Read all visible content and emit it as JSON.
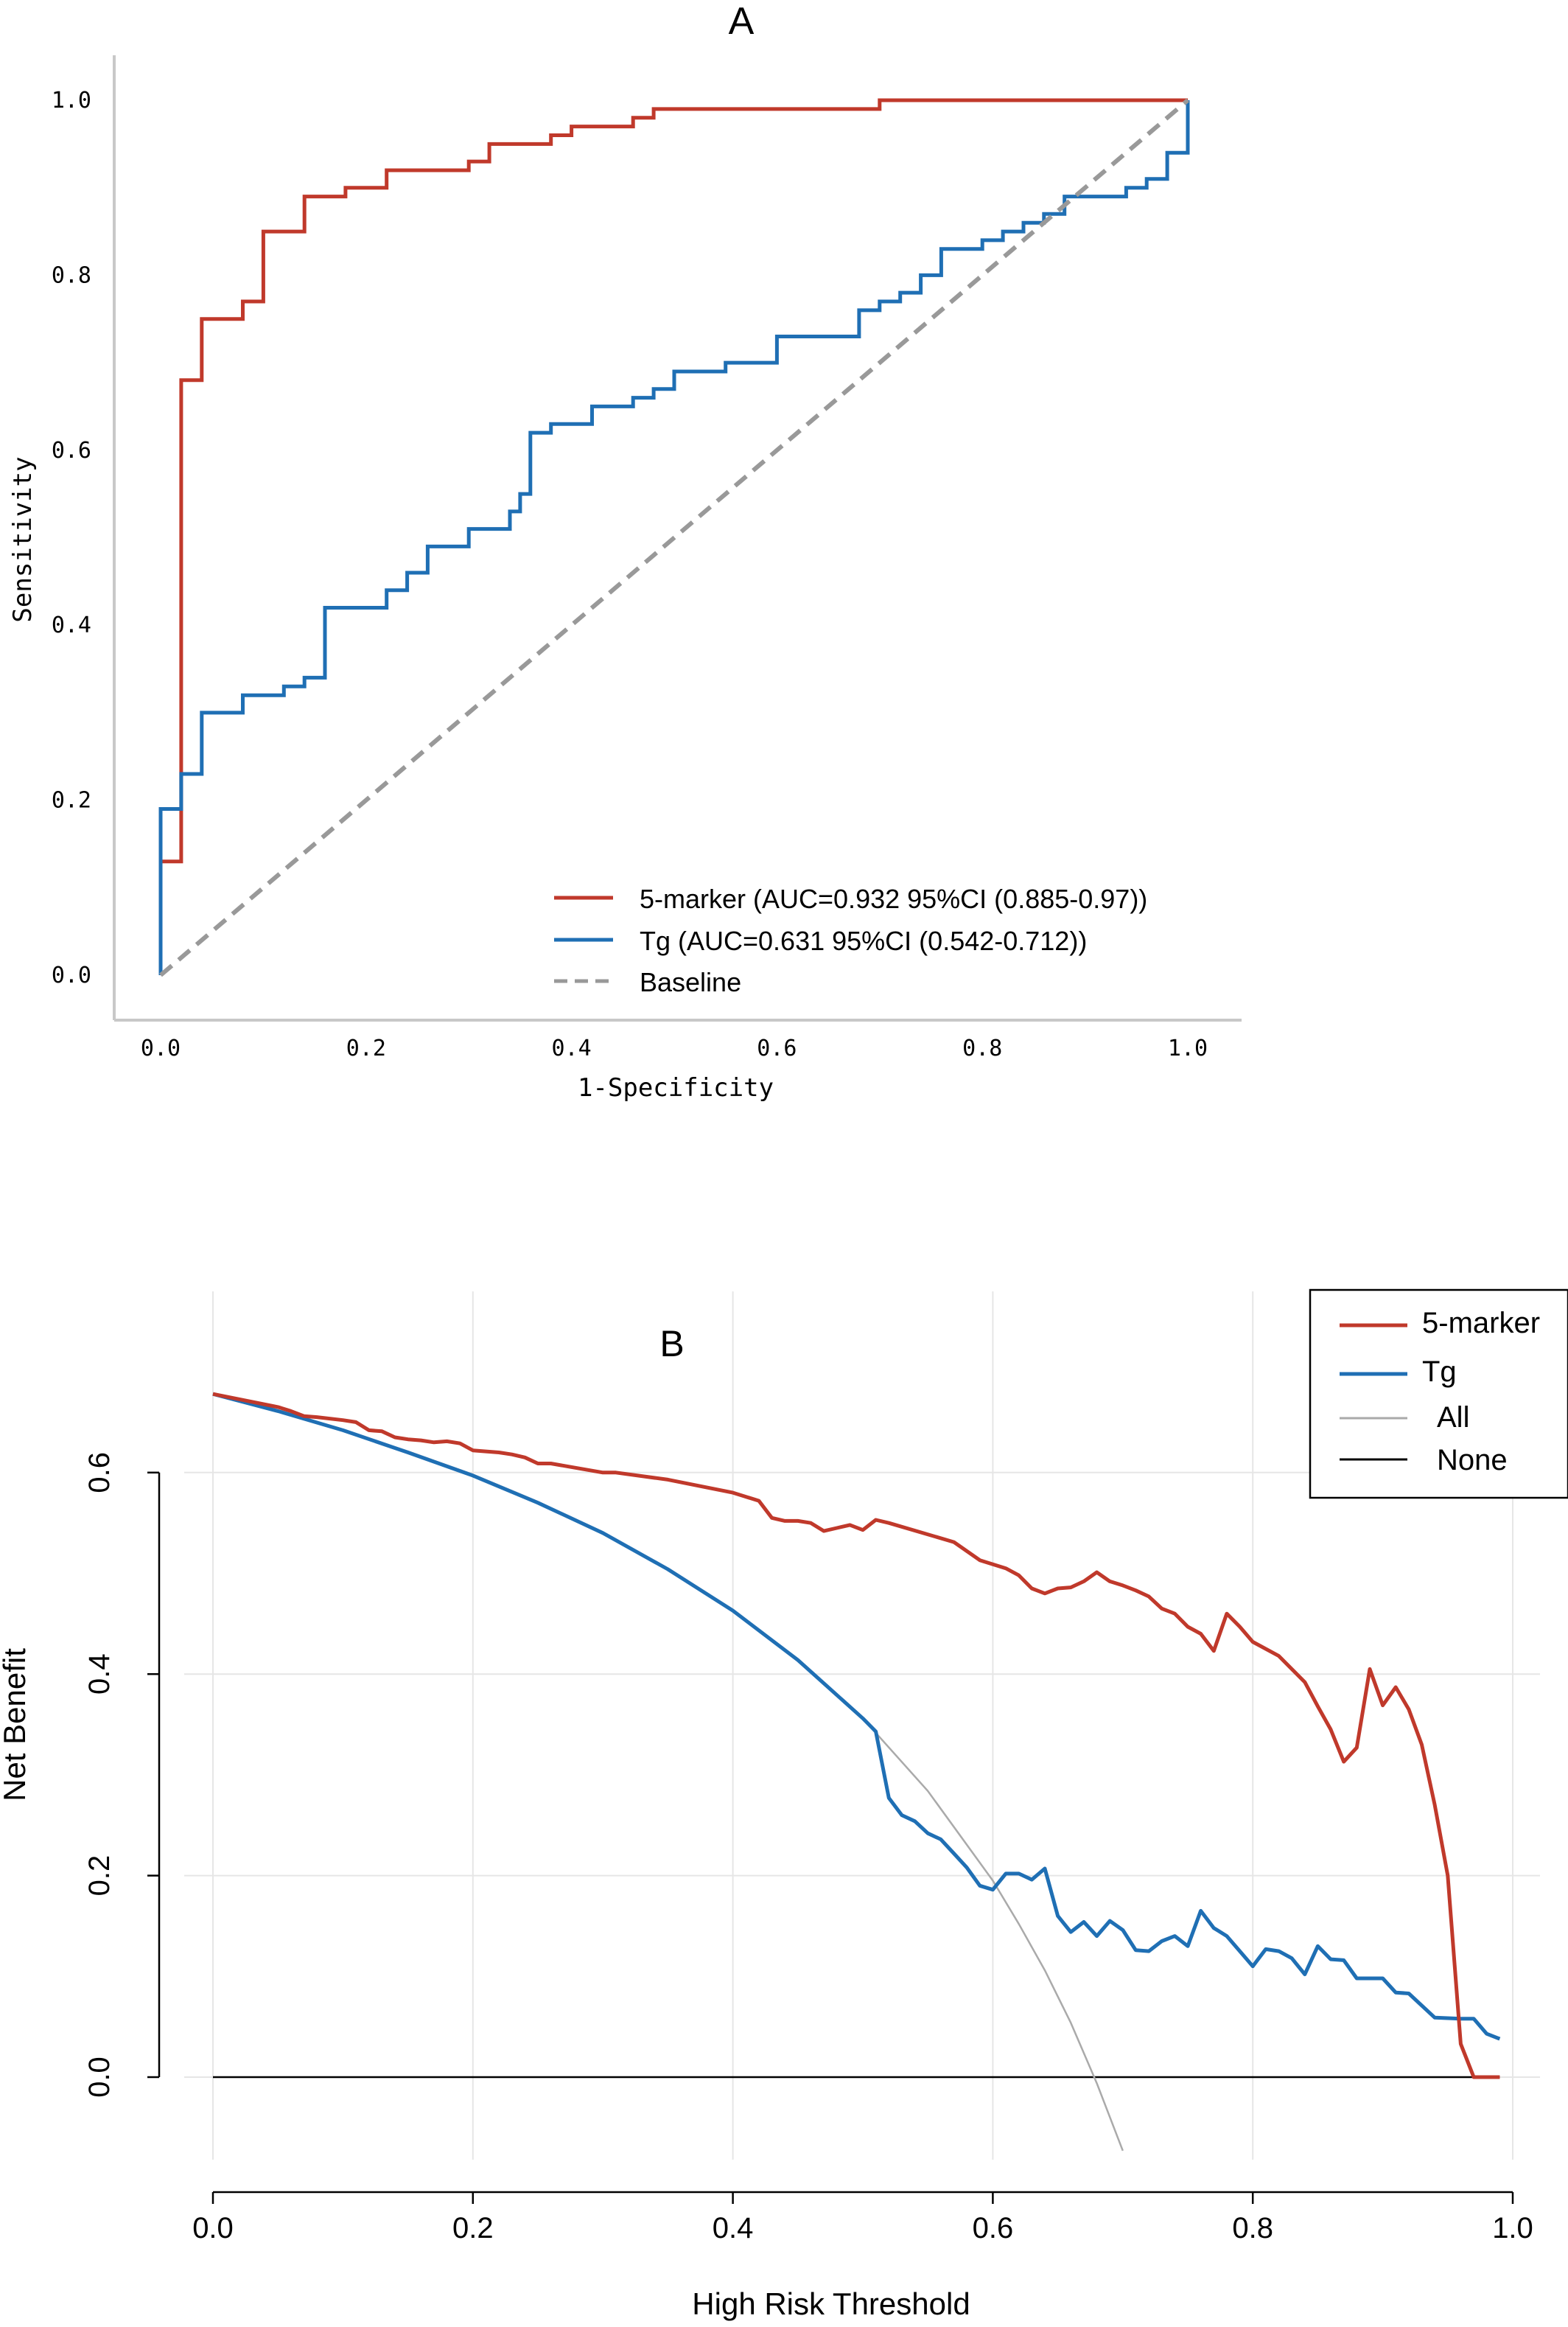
{
  "chart_data": [
    {
      "type": "line",
      "title": "A",
      "xlabel": "1-Specificity",
      "ylabel": "Sensitivity",
      "xlim": [
        0,
        1
      ],
      "ylim": [
        0,
        1
      ],
      "xticks": [
        "0.0",
        "0.2",
        "0.4",
        "0.6",
        "0.8",
        "1.0"
      ],
      "yticks": [
        "0.0",
        "0.2",
        "0.4",
        "0.6",
        "0.8",
        "1.0"
      ],
      "grid": false,
      "legend_position": "bottom-right",
      "series": [
        {
          "name": "5-marker (AUC=0.932 95%CI (0.885-0.97))",
          "color": "#c0392b",
          "style": "step",
          "points": [
            [
              0,
              0
            ],
            [
              0,
              0.13
            ],
            [
              0.02,
              0.13
            ],
            [
              0.02,
              0.68
            ],
            [
              0.04,
              0.68
            ],
            [
              0.04,
              0.75
            ],
            [
              0.08,
              0.75
            ],
            [
              0.08,
              0.77
            ],
            [
              0.1,
              0.77
            ],
            [
              0.1,
              0.85
            ],
            [
              0.14,
              0.85
            ],
            [
              0.14,
              0.89
            ],
            [
              0.18,
              0.89
            ],
            [
              0.18,
              0.9
            ],
            [
              0.22,
              0.9
            ],
            [
              0.22,
              0.92
            ],
            [
              0.3,
              0.92
            ],
            [
              0.3,
              0.93
            ],
            [
              0.32,
              0.93
            ],
            [
              0.32,
              0.95
            ],
            [
              0.38,
              0.95
            ],
            [
              0.38,
              0.96
            ],
            [
              0.4,
              0.96
            ],
            [
              0.4,
              0.97
            ],
            [
              0.46,
              0.97
            ],
            [
              0.46,
              0.98
            ],
            [
              0.48,
              0.98
            ],
            [
              0.48,
              0.99
            ],
            [
              0.7,
              0.99
            ],
            [
              0.7,
              1.0
            ],
            [
              1.0,
              1.0
            ]
          ]
        },
        {
          "name": "Tg (AUC=0.631 95%CI (0.542-0.712))",
          "color": "#1f6fb4",
          "style": "step",
          "points": [
            [
              0,
              0
            ],
            [
              0,
              0.19
            ],
            [
              0.02,
              0.19
            ],
            [
              0.02,
              0.23
            ],
            [
              0.04,
              0.23
            ],
            [
              0.04,
              0.24
            ],
            [
              0.04,
              0.3
            ],
            [
              0.08,
              0.3
            ],
            [
              0.08,
              0.32
            ],
            [
              0.12,
              0.32
            ],
            [
              0.12,
              0.33
            ],
            [
              0.14,
              0.33
            ],
            [
              0.14,
              0.34
            ],
            [
              0.16,
              0.34
            ],
            [
              0.16,
              0.42
            ],
            [
              0.22,
              0.42
            ],
            [
              0.22,
              0.44
            ],
            [
              0.24,
              0.44
            ],
            [
              0.24,
              0.46
            ],
            [
              0.26,
              0.46
            ],
            [
              0.26,
              0.49
            ],
            [
              0.3,
              0.49
            ],
            [
              0.3,
              0.51
            ],
            [
              0.34,
              0.51
            ],
            [
              0.34,
              0.53
            ],
            [
              0.35,
              0.53
            ],
            [
              0.35,
              0.55
            ],
            [
              0.36,
              0.55
            ],
            [
              0.36,
              0.62
            ],
            [
              0.38,
              0.62
            ],
            [
              0.38,
              0.63
            ],
            [
              0.42,
              0.63
            ],
            [
              0.42,
              0.65
            ],
            [
              0.46,
              0.65
            ],
            [
              0.46,
              0.66
            ],
            [
              0.48,
              0.66
            ],
            [
              0.48,
              0.67
            ],
            [
              0.5,
              0.67
            ],
            [
              0.5,
              0.69
            ],
            [
              0.55,
              0.69
            ],
            [
              0.55,
              0.7
            ],
            [
              0.6,
              0.7
            ],
            [
              0.6,
              0.73
            ],
            [
              0.68,
              0.73
            ],
            [
              0.68,
              0.76
            ],
            [
              0.7,
              0.76
            ],
            [
              0.7,
              0.77
            ],
            [
              0.72,
              0.77
            ],
            [
              0.72,
              0.78
            ],
            [
              0.74,
              0.78
            ],
            [
              0.74,
              0.8
            ],
            [
              0.76,
              0.8
            ],
            [
              0.76,
              0.83
            ],
            [
              0.8,
              0.83
            ],
            [
              0.8,
              0.84
            ],
            [
              0.82,
              0.84
            ],
            [
              0.82,
              0.85
            ],
            [
              0.84,
              0.85
            ],
            [
              0.84,
              0.86
            ],
            [
              0.86,
              0.86
            ],
            [
              0.86,
              0.87
            ],
            [
              0.88,
              0.87
            ],
            [
              0.88,
              0.89
            ],
            [
              0.94,
              0.89
            ],
            [
              0.94,
              0.9
            ],
            [
              0.96,
              0.9
            ],
            [
              0.96,
              0.91
            ],
            [
              0.98,
              0.91
            ],
            [
              0.98,
              0.94
            ],
            [
              1.0,
              0.94
            ],
            [
              1.0,
              1.0
            ]
          ]
        },
        {
          "name": "Baseline",
          "color": "#999999",
          "style": "dashed",
          "points": [
            [
              0,
              0
            ],
            [
              1,
              1
            ]
          ]
        }
      ]
    },
    {
      "type": "line",
      "title": "B",
      "xlabel": "High Risk Threshold",
      "ylabel": "Net Benefit",
      "xlim": [
        0,
        1
      ],
      "xticks": [
        "0.0",
        "0.2",
        "0.4",
        "0.6",
        "0.8",
        "1.0"
      ],
      "yticks": [
        "0.0",
        "0.2",
        "0.4",
        "0.6"
      ],
      "grid": true,
      "legend_position": "top-right",
      "series": [
        {
          "name": "5-marker",
          "color": "#c0392b",
          "points": [
            [
              0,
              0.678
            ],
            [
              0.05,
              0.665
            ],
            [
              0.06,
              0.661
            ],
            [
              0.07,
              0.656
            ],
            [
              0.08,
              0.655
            ],
            [
              0.1,
              0.652
            ],
            [
              0.11,
              0.65
            ],
            [
              0.12,
              0.642
            ],
            [
              0.13,
              0.641
            ],
            [
              0.14,
              0.635
            ],
            [
              0.15,
              0.633
            ],
            [
              0.16,
              0.632
            ],
            [
              0.17,
              0.63
            ],
            [
              0.18,
              0.631
            ],
            [
              0.19,
              0.629
            ],
            [
              0.2,
              0.622
            ],
            [
              0.21,
              0.621
            ],
            [
              0.22,
              0.62
            ],
            [
              0.23,
              0.618
            ],
            [
              0.24,
              0.615
            ],
            [
              0.25,
              0.609
            ],
            [
              0.26,
              0.609
            ],
            [
              0.3,
              0.6
            ],
            [
              0.31,
              0.6
            ],
            [
              0.35,
              0.593
            ],
            [
              0.4,
              0.58
            ],
            [
              0.42,
              0.572
            ],
            [
              0.43,
              0.555
            ],
            [
              0.44,
              0.552
            ],
            [
              0.45,
              0.552
            ],
            [
              0.46,
              0.55
            ],
            [
              0.47,
              0.542
            ],
            [
              0.48,
              0.545
            ],
            [
              0.49,
              0.548
            ],
            [
              0.5,
              0.543
            ],
            [
              0.51,
              0.553
            ],
            [
              0.52,
              0.55
            ],
            [
              0.57,
              0.531
            ],
            [
              0.59,
              0.513
            ],
            [
              0.61,
              0.505
            ],
            [
              0.62,
              0.498
            ],
            [
              0.63,
              0.485
            ],
            [
              0.64,
              0.48
            ],
            [
              0.65,
              0.485
            ],
            [
              0.66,
              0.486
            ],
            [
              0.67,
              0.492
            ],
            [
              0.68,
              0.501
            ],
            [
              0.69,
              0.492
            ],
            [
              0.7,
              0.488
            ],
            [
              0.71,
              0.483
            ],
            [
              0.72,
              0.477
            ],
            [
              0.73,
              0.465
            ],
            [
              0.74,
              0.46
            ],
            [
              0.75,
              0.447
            ],
            [
              0.76,
              0.44
            ],
            [
              0.77,
              0.423
            ],
            [
              0.78,
              0.46
            ],
            [
              0.79,
              0.447
            ],
            [
              0.8,
              0.432
            ],
            [
              0.82,
              0.418
            ],
            [
              0.84,
              0.392
            ],
            [
              0.85,
              0.368
            ],
            [
              0.86,
              0.345
            ],
            [
              0.87,
              0.313
            ],
            [
              0.88,
              0.327
            ],
            [
              0.89,
              0.405
            ],
            [
              0.9,
              0.369
            ],
            [
              0.91,
              0.387
            ],
            [
              0.92,
              0.365
            ],
            [
              0.93,
              0.33
            ],
            [
              0.94,
              0.27
            ],
            [
              0.95,
              0.2
            ],
            [
              0.96,
              0.033
            ],
            [
              0.97,
              0.0
            ],
            [
              0.99,
              0.0
            ]
          ]
        },
        {
          "name": "Tg",
          "color": "#1f6fb4",
          "points": [
            [
              0,
              0.678
            ],
            [
              0.05,
              0.661
            ],
            [
              0.1,
              0.642
            ],
            [
              0.15,
              0.62
            ],
            [
              0.2,
              0.597
            ],
            [
              0.25,
              0.57
            ],
            [
              0.3,
              0.54
            ],
            [
              0.35,
              0.504
            ],
            [
              0.4,
              0.463
            ],
            [
              0.45,
              0.414
            ],
            [
              0.5,
              0.356
            ],
            [
              0.51,
              0.343
            ],
            [
              0.52,
              0.277
            ],
            [
              0.53,
              0.26
            ],
            [
              0.54,
              0.254
            ],
            [
              0.55,
              0.242
            ],
            [
              0.56,
              0.236
            ],
            [
              0.57,
              0.222
            ],
            [
              0.58,
              0.208
            ],
            [
              0.59,
              0.19
            ],
            [
              0.6,
              0.186
            ],
            [
              0.61,
              0.202
            ],
            [
              0.62,
              0.202
            ],
            [
              0.63,
              0.196
            ],
            [
              0.64,
              0.207
            ],
            [
              0.65,
              0.16
            ],
            [
              0.66,
              0.144
            ],
            [
              0.67,
              0.154
            ],
            [
              0.68,
              0.14
            ],
            [
              0.69,
              0.155
            ],
            [
              0.7,
              0.146
            ],
            [
              0.71,
              0.126
            ],
            [
              0.72,
              0.125
            ],
            [
              0.73,
              0.135
            ],
            [
              0.74,
              0.14
            ],
            [
              0.75,
              0.13
            ],
            [
              0.76,
              0.165
            ],
            [
              0.77,
              0.148
            ],
            [
              0.78,
              0.14
            ],
            [
              0.79,
              0.125
            ],
            [
              0.8,
              0.11
            ],
            [
              0.81,
              0.127
            ],
            [
              0.82,
              0.125
            ],
            [
              0.83,
              0.118
            ],
            [
              0.84,
              0.102
            ],
            [
              0.85,
              0.13
            ],
            [
              0.86,
              0.117
            ],
            [
              0.87,
              0.116
            ],
            [
              0.88,
              0.098
            ],
            [
              0.9,
              0.098
            ],
            [
              0.91,
              0.084
            ],
            [
              0.92,
              0.083
            ],
            [
              0.94,
              0.059
            ],
            [
              0.96,
              0.058
            ],
            [
              0.97,
              0.058
            ],
            [
              0.98,
              0.043
            ],
            [
              0.99,
              0.038
            ]
          ]
        },
        {
          "name": "All",
          "color": "#aaaaaa",
          "points": [
            [
              0,
              0.678
            ],
            [
              0.05,
              0.661
            ],
            [
              0.1,
              0.642
            ],
            [
              0.15,
              0.621
            ],
            [
              0.2,
              0.598
            ],
            [
              0.25,
              0.571
            ],
            [
              0.3,
              0.54
            ],
            [
              0.35,
              0.505
            ],
            [
              0.4,
              0.463
            ],
            [
              0.45,
              0.415
            ],
            [
              0.5,
              0.356
            ],
            [
              0.55,
              0.284
            ],
            [
              0.6,
              0.195
            ],
            [
              0.62,
              0.152
            ],
            [
              0.64,
              0.106
            ],
            [
              0.66,
              0.054
            ],
            [
              0.68,
              -0.006
            ],
            [
              0.7,
              -0.073
            ]
          ]
        },
        {
          "name": "None",
          "color": "#000000",
          "points": [
            [
              0,
              0
            ],
            [
              0.99,
              0
            ]
          ]
        }
      ]
    }
  ]
}
